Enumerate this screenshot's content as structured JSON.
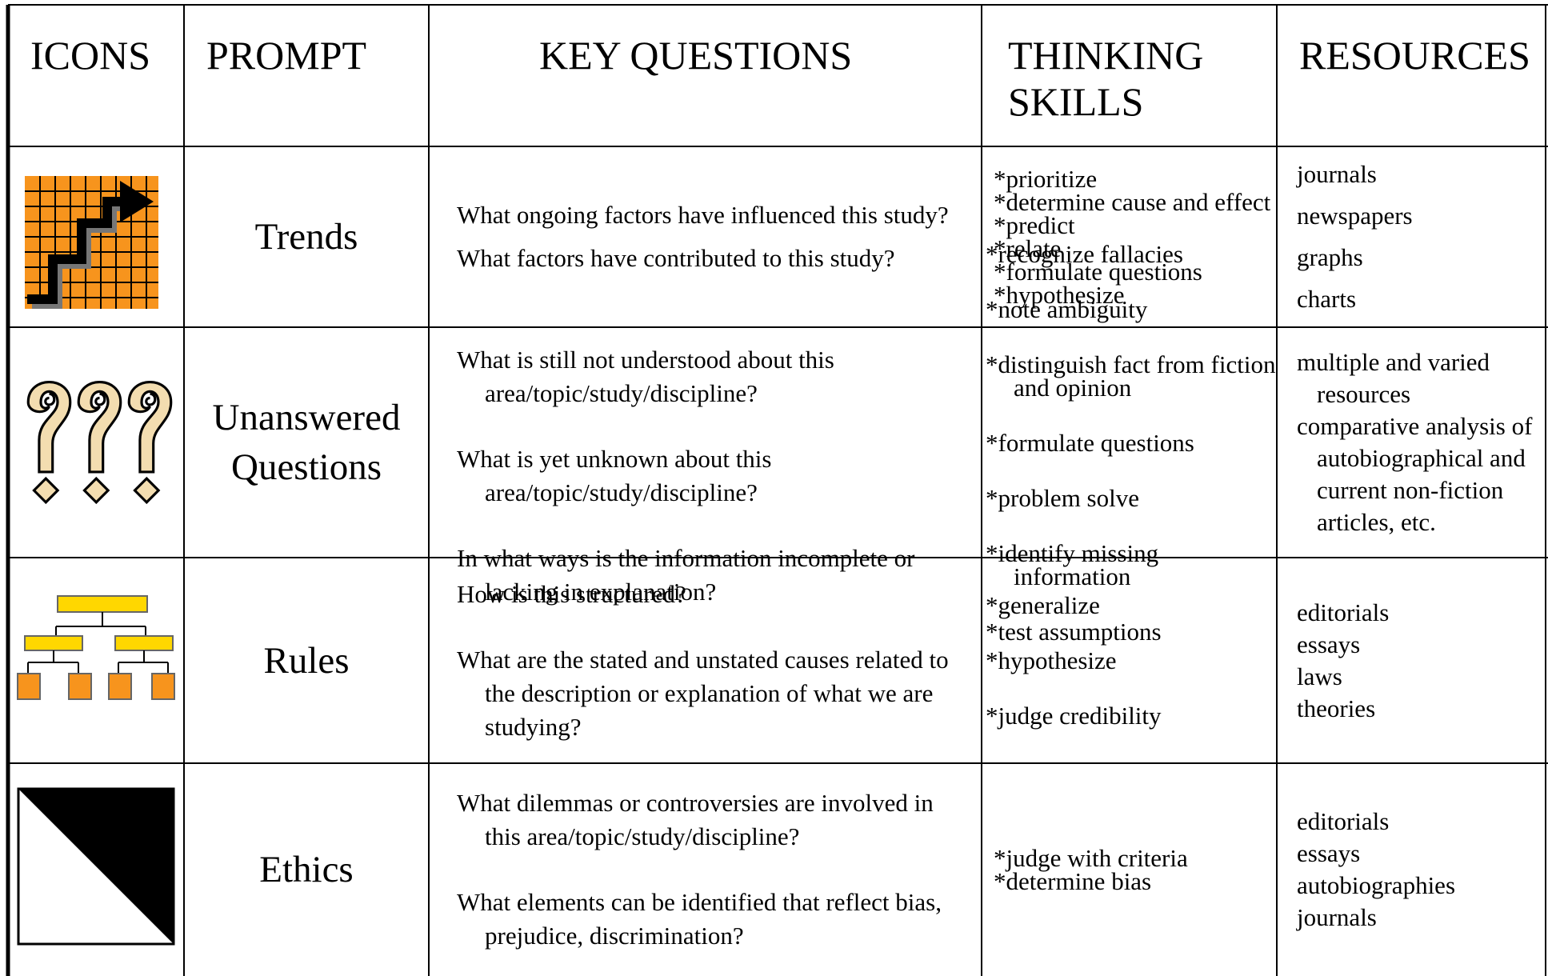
{
  "header": [
    "ICONS",
    "PROMPT",
    "KEY QUESTIONS",
    "THINKING SKILLS",
    "RESOURCES"
  ],
  "rows": [
    {
      "prompt": "Trends",
      "questions": [
        "What ongoing factors have influenced this study?",
        "What factors have contributed to this study?"
      ],
      "skills": [
        "*prioritize",
        "*determine cause and effect",
        "*predict",
        "*relate",
        "*formulate questions",
        "*hypothesize"
      ],
      "resources": [
        "journals",
        "newspapers",
        "graphs",
        "charts"
      ]
    },
    {
      "prompt": "Unanswered Questions",
      "questions": [
        "What is still not understood about this area/topic/study/discipline?",
        "What is yet unknown about this area/topic/study/discipline?",
        "In what ways is the information incomplete or lacking in explanation?"
      ],
      "skills": [
        "*recognize fallacies",
        "*note ambiguity",
        "*distinguish fact from fiction and opinion",
        "*formulate questions",
        "*problem solve",
        "*identify missing information",
        "*test assumptions"
      ],
      "resources": [
        "multiple and varied resources",
        "comparative analysis of autobiographical and current non-fiction articles, etc."
      ]
    },
    {
      "prompt": "Rules",
      "questions": [
        "How is this structured?",
        "What are the stated and unstated causes related to the description or explanation of what we are studying?"
      ],
      "skills": [
        "*generalize",
        "*hypothesize",
        "*judge credibility"
      ],
      "resources": [
        "editorials",
        "essays",
        "laws",
        "theories"
      ]
    },
    {
      "prompt": "Ethics",
      "questions": [
        "What dilemmas or controversies are involved in this area/topic/study/discipline?",
        "What elements can be identified that reflect bias, prejudice, discrimination?"
      ],
      "skills": [
        "*judge with criteria",
        "*determine bias"
      ],
      "resources": [
        "editorials",
        "essays",
        "autobiographies",
        "journals"
      ]
    }
  ]
}
